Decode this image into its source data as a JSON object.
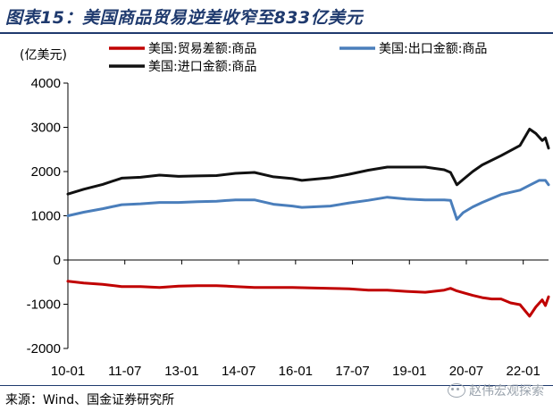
{
  "header": {
    "title": "图表15：美国商品贸易逆差收窄至833亿美元"
  },
  "footer": {
    "source": "来源：Wind、国金证券研究所",
    "watermark": "赵伟宏观探索",
    "watermark_icon": "wechat-icon"
  },
  "chart_data": {
    "type": "line",
    "unit_label": "(亿美元)",
    "xlabel": "",
    "ylabel": "",
    "ylim": [
      -2000,
      4000
    ],
    "yticks": [
      -2000,
      -1000,
      0,
      1000,
      2000,
      3000,
      4000
    ],
    "xlim": [
      "2010-01",
      "2022-09"
    ],
    "xticks": [
      "10-01",
      "11-07",
      "13-01",
      "14-07",
      "16-01",
      "17-07",
      "19-01",
      "20-07",
      "22-01"
    ],
    "grid": false,
    "legend": "top",
    "series": [
      {
        "name": "美国:贸易差额:商品",
        "color": "#c00000",
        "points": [
          [
            "2010-01",
            -480
          ],
          [
            "2010-06",
            -520
          ],
          [
            "2010-12",
            -550
          ],
          [
            "2011-06",
            -600
          ],
          [
            "2011-12",
            -600
          ],
          [
            "2012-06",
            -620
          ],
          [
            "2012-12",
            -590
          ],
          [
            "2013-06",
            -580
          ],
          [
            "2013-12",
            -580
          ],
          [
            "2014-06",
            -600
          ],
          [
            "2014-12",
            -620
          ],
          [
            "2015-06",
            -620
          ],
          [
            "2015-12",
            -620
          ],
          [
            "2016-06",
            -630
          ],
          [
            "2016-12",
            -640
          ],
          [
            "2017-06",
            -650
          ],
          [
            "2017-12",
            -680
          ],
          [
            "2018-06",
            -680
          ],
          [
            "2018-12",
            -710
          ],
          [
            "2019-06",
            -730
          ],
          [
            "2019-12",
            -680
          ],
          [
            "2020-02",
            -640
          ],
          [
            "2020-04",
            -700
          ],
          [
            "2020-06",
            -740
          ],
          [
            "2020-09",
            -800
          ],
          [
            "2020-12",
            -850
          ],
          [
            "2021-03",
            -880
          ],
          [
            "2021-06",
            -880
          ],
          [
            "2021-09",
            -970
          ],
          [
            "2021-12",
            -1010
          ],
          [
            "2022-03",
            -1270
          ],
          [
            "2022-05",
            -1060
          ],
          [
            "2022-07",
            -900
          ],
          [
            "2022-08",
            -1030
          ],
          [
            "2022-09",
            -833
          ]
        ]
      },
      {
        "name": "美国:出口金额:商品",
        "color": "#4a7ebb",
        "points": [
          [
            "2010-01",
            1000
          ],
          [
            "2010-06",
            1080
          ],
          [
            "2010-12",
            1160
          ],
          [
            "2011-06",
            1250
          ],
          [
            "2011-12",
            1270
          ],
          [
            "2012-06",
            1300
          ],
          [
            "2012-12",
            1300
          ],
          [
            "2013-06",
            1320
          ],
          [
            "2013-12",
            1330
          ],
          [
            "2014-06",
            1360
          ],
          [
            "2014-12",
            1360
          ],
          [
            "2015-06",
            1260
          ],
          [
            "2015-12",
            1220
          ],
          [
            "2016-03",
            1190
          ],
          [
            "2016-12",
            1220
          ],
          [
            "2017-06",
            1290
          ],
          [
            "2017-12",
            1350
          ],
          [
            "2018-06",
            1420
          ],
          [
            "2018-12",
            1380
          ],
          [
            "2019-06",
            1360
          ],
          [
            "2019-12",
            1360
          ],
          [
            "2020-02",
            1350
          ],
          [
            "2020-04",
            920
          ],
          [
            "2020-06",
            1070
          ],
          [
            "2020-09",
            1200
          ],
          [
            "2020-12",
            1300
          ],
          [
            "2021-06",
            1480
          ],
          [
            "2021-12",
            1580
          ],
          [
            "2022-03",
            1690
          ],
          [
            "2022-06",
            1800
          ],
          [
            "2022-08",
            1800
          ],
          [
            "2022-09",
            1700
          ]
        ]
      },
      {
        "name": "美国:进口金额:商品",
        "color": "#111111",
        "points": [
          [
            "2010-01",
            1490
          ],
          [
            "2010-06",
            1600
          ],
          [
            "2010-12",
            1710
          ],
          [
            "2011-06",
            1850
          ],
          [
            "2011-12",
            1870
          ],
          [
            "2012-06",
            1920
          ],
          [
            "2012-12",
            1890
          ],
          [
            "2013-06",
            1900
          ],
          [
            "2013-12",
            1910
          ],
          [
            "2014-06",
            1960
          ],
          [
            "2014-12",
            1980
          ],
          [
            "2015-06",
            1880
          ],
          [
            "2015-12",
            1840
          ],
          [
            "2016-03",
            1800
          ],
          [
            "2016-12",
            1860
          ],
          [
            "2017-06",
            1940
          ],
          [
            "2017-12",
            2030
          ],
          [
            "2018-06",
            2100
          ],
          [
            "2018-12",
            2100
          ],
          [
            "2019-06",
            2100
          ],
          [
            "2019-12",
            2040
          ],
          [
            "2020-02",
            1980
          ],
          [
            "2020-04",
            1700
          ],
          [
            "2020-06",
            1820
          ],
          [
            "2020-09",
            2000
          ],
          [
            "2020-12",
            2150
          ],
          [
            "2021-06",
            2360
          ],
          [
            "2021-12",
            2590
          ],
          [
            "2022-03",
            2960
          ],
          [
            "2022-05",
            2860
          ],
          [
            "2022-07",
            2700
          ],
          [
            "2022-08",
            2760
          ],
          [
            "2022-09",
            2530
          ]
        ]
      }
    ]
  }
}
